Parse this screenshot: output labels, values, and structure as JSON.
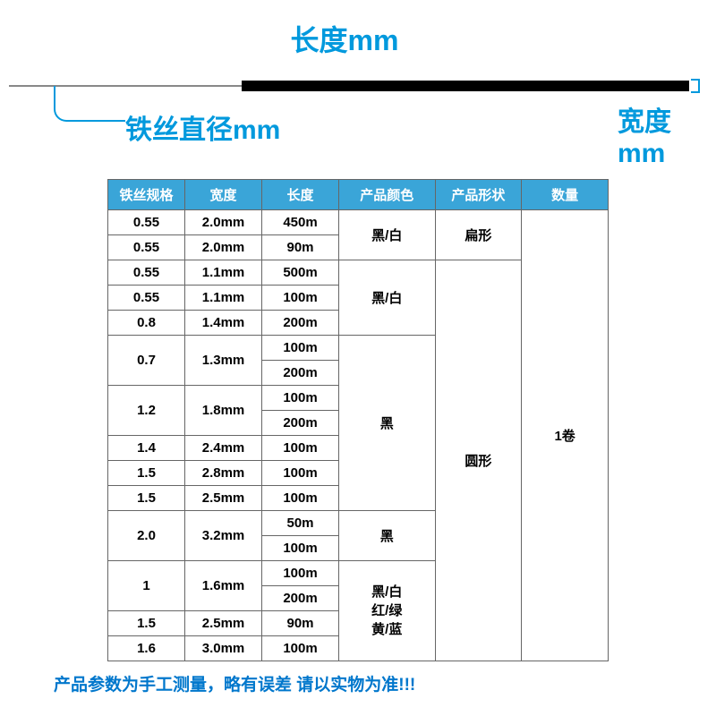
{
  "diagram": {
    "length_label": "长度mm",
    "diameter_label": "铁丝直径mm",
    "width_label_line1": "宽度",
    "width_label_line2": "mm",
    "accent_color": "#0099dd",
    "wire_thin_color": "#888888",
    "wire_thick_color": "#000000"
  },
  "table": {
    "headers": {
      "spec": "铁丝规格",
      "width": "宽度",
      "length": "长度",
      "color": "产品颜色",
      "shape": "产品形状",
      "qty": "数量"
    },
    "header_bg": "#3aa5d8",
    "header_fg": "#ffffff",
    "border_color": "#666666",
    "qty_value": "1卷",
    "groups": [
      {
        "color": "黑/白",
        "shape": "扁形",
        "rows": [
          {
            "spec": "0.55",
            "width": "2.0mm",
            "length": "450m"
          },
          {
            "spec": "0.55",
            "width": "2.0mm",
            "length": "90m"
          }
        ]
      },
      {
        "color": "黑/白",
        "shape": "圆形",
        "rows": [
          {
            "spec": "0.55",
            "width": "1.1mm",
            "length": "500m"
          },
          {
            "spec": "0.55",
            "width": "1.1mm",
            "length": "100m"
          },
          {
            "spec": "0.8",
            "width": "1.4mm",
            "length": "200m"
          }
        ]
      },
      {
        "color": "黑",
        "shape": "圆形",
        "subrows": [
          {
            "spec": "0.7",
            "width": "1.3mm",
            "lengths": [
              "100m",
              "200m"
            ]
          },
          {
            "spec": "1.2",
            "width": "1.8mm",
            "lengths": [
              "100m",
              "200m"
            ]
          },
          {
            "spec": "1.4",
            "width": "2.4mm",
            "lengths": [
              "100m"
            ]
          },
          {
            "spec": "1.5",
            "width": "2.8mm",
            "lengths": [
              "100m"
            ]
          },
          {
            "spec": "1.5",
            "width": "2.5mm",
            "lengths": [
              "100m"
            ]
          }
        ]
      },
      {
        "color": "黑",
        "shape": "圆形",
        "subrows": [
          {
            "spec": "2.0",
            "width": "3.2mm",
            "lengths": [
              "50m",
              "100m"
            ]
          }
        ]
      },
      {
        "color": "黑/白\n红/绿\n黄/蓝",
        "shape": "圆形",
        "subrows": [
          {
            "spec": "1",
            "width": "1.6mm",
            "lengths": [
              "100m",
              "200m"
            ]
          },
          {
            "spec": "1.5",
            "width": "2.5mm",
            "lengths": [
              "90m"
            ]
          },
          {
            "spec": "1.6",
            "width": "3.0mm",
            "lengths": [
              "100m"
            ]
          }
        ]
      }
    ]
  },
  "footnote": "产品参数为手工测量，略有误差  请以实物为准!!!"
}
